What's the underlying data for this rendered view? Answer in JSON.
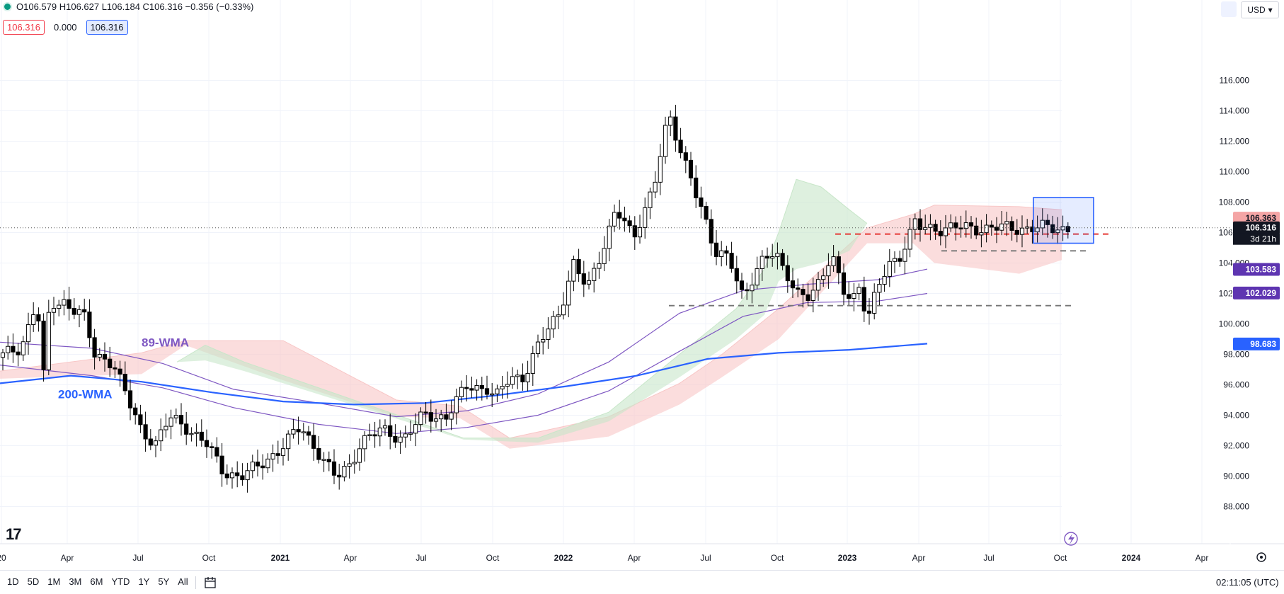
{
  "header": {
    "ohlc_text": "O106.579 H106.627 L106.184 C106.316 −0.356 (−0.33%)",
    "badge_red": "106.316",
    "badge_mid": "0.000",
    "badge_blue": "106.316",
    "currency": "USD"
  },
  "bottom_bar": {
    "ranges": [
      "1D",
      "5D",
      "1M",
      "3M",
      "6M",
      "YTD",
      "1Y",
      "5Y",
      "All"
    ],
    "clock": "02:11:05 (UTC)"
  },
  "colors": {
    "up_candle": "#ffffff",
    "down_candle": "#000000",
    "wma200": "#2962ff",
    "wma89": "#7e57c2",
    "cloud_bull": "#c8e6c9",
    "cloud_bear": "#f8c6c6",
    "resistance": "#e53935",
    "support": "#757575",
    "highlight_box": "#2962ff"
  },
  "chart_data": {
    "type": "candlestick",
    "x_ticks": [
      "20",
      "Apr",
      "Jul",
      "Oct",
      "2021",
      "Apr",
      "Jul",
      "Oct",
      "2022",
      "Apr",
      "Jul",
      "Oct",
      "2023",
      "Apr",
      "Jul",
      "Oct",
      "2024",
      "Apr"
    ],
    "ylim": [
      87,
      117
    ],
    "y_ticks": [
      "88.000",
      "90.000",
      "92.000",
      "94.000",
      "96.000",
      "98.000",
      "100.000",
      "102.000",
      "104.000",
      "106.000",
      "108.000",
      "110.000",
      "112.000",
      "114.000",
      "116.000"
    ],
    "annotations": {
      "wma89_label": "89-WMA",
      "wma200_label": "200-WMA"
    },
    "price_labels": {
      "pink": "106.363",
      "current": "106.316",
      "countdown": "3d 21h",
      "purple_upper": "103.583",
      "purple_lower": "102.029",
      "blue": "98.683"
    },
    "horizontal_levels": [
      {
        "y": 105.9,
        "style": "dashed",
        "color": "red"
      },
      {
        "y": 104.8,
        "style": "dashed",
        "color": "gray"
      },
      {
        "y": 101.2,
        "style": "dashed",
        "color": "gray"
      }
    ],
    "keypoints": [
      [
        0,
        97.8
      ],
      [
        30,
        98.5
      ],
      [
        52,
        101.5
      ],
      [
        62,
        96.3
      ],
      [
        70,
        101.2
      ],
      [
        90,
        101.5
      ],
      [
        118,
        100.5
      ],
      [
        133,
        98.0
      ],
      [
        160,
        97.5
      ],
      [
        180,
        95.0
      ],
      [
        200,
        93.0
      ],
      [
        220,
        92.2
      ],
      [
        240,
        93.8
      ],
      [
        265,
        93.2
      ],
      [
        290,
        92.2
      ],
      [
        315,
        90.3
      ],
      [
        340,
        90.0
      ],
      [
        365,
        90.6
      ],
      [
        395,
        91.8
      ],
      [
        425,
        93.2
      ],
      [
        450,
        91.6
      ],
      [
        475,
        89.8
      ],
      [
        495,
        90.8
      ],
      [
        510,
        92.3
      ],
      [
        540,
        93.0
      ],
      [
        570,
        92.5
      ],
      [
        600,
        94.0
      ],
      [
        630,
        93.9
      ],
      [
        660,
        95.9
      ],
      [
        690,
        95.8
      ],
      [
        700,
        95.1
      ],
      [
        720,
        96.4
      ],
      [
        740,
        96.6
      ],
      [
        760,
        98.5
      ],
      [
        790,
        100.8
      ],
      [
        810,
        104.0
      ],
      [
        830,
        102.2
      ],
      [
        850,
        104.8
      ],
      [
        870,
        107.6
      ],
      [
        895,
        105.5
      ],
      [
        925,
        109.5
      ],
      [
        945,
        113.6
      ],
      [
        960,
        111.5
      ],
      [
        975,
        110.0
      ],
      [
        990,
        107.6
      ],
      [
        1010,
        104.5
      ],
      [
        1030,
        104.7
      ],
      [
        1050,
        101.6
      ],
      [
        1060,
        102.4
      ],
      [
        1080,
        104.5
      ],
      [
        1095,
        105.0
      ],
      [
        1105,
        103.7
      ],
      [
        1125,
        101.8
      ],
      [
        1140,
        101.9
      ],
      [
        1160,
        103.0
      ],
      [
        1175,
        104.4
      ],
      [
        1190,
        102.2
      ],
      [
        1205,
        101.8
      ],
      [
        1215,
        102.6
      ],
      [
        1225,
        100.2
      ],
      [
        1240,
        102.2
      ],
      [
        1255,
        104.0
      ],
      [
        1270,
        104.4
      ],
      [
        1285,
        105.8
      ],
      [
        1295,
        106.8
      ],
      [
        1300,
        106.3
      ],
      [
        1310,
        106.3
      ]
    ],
    "wma200": [
      [
        0,
        96.1
      ],
      [
        100,
        96.6
      ],
      [
        200,
        96.2
      ],
      [
        300,
        95.5
      ],
      [
        400,
        94.9
      ],
      [
        500,
        94.7
      ],
      [
        600,
        94.8
      ],
      [
        700,
        95.3
      ],
      [
        800,
        95.9
      ],
      [
        900,
        96.6
      ],
      [
        1000,
        97.7
      ],
      [
        1100,
        98.1
      ],
      [
        1200,
        98.3
      ],
      [
        1310,
        98.7
      ]
    ],
    "wma89_fast": [
      [
        0,
        98.8
      ],
      [
        130,
        98.4
      ],
      [
        230,
        97.4
      ],
      [
        330,
        95.7
      ],
      [
        450,
        94.8
      ],
      [
        560,
        93.9
      ],
      [
        660,
        94.3
      ],
      [
        760,
        95.4
      ],
      [
        860,
        97.5
      ],
      [
        960,
        100.7
      ],
      [
        1050,
        102.2
      ],
      [
        1140,
        102.6
      ],
      [
        1240,
        102.9
      ],
      [
        1310,
        103.6
      ]
    ],
    "wma89_slow": [
      [
        0,
        97.3
      ],
      [
        130,
        96.6
      ],
      [
        230,
        95.8
      ],
      [
        330,
        94.5
      ],
      [
        450,
        93.4
      ],
      [
        560,
        92.8
      ],
      [
        660,
        93.2
      ],
      [
        760,
        94.0
      ],
      [
        860,
        95.6
      ],
      [
        960,
        98.2
      ],
      [
        1050,
        100.5
      ],
      [
        1140,
        101.4
      ],
      [
        1240,
        101.5
      ],
      [
        1310,
        102.0
      ]
    ],
    "cloud_green": {
      "upper": [
        [
          250,
          97.5
        ],
        [
          290,
          98.6
        ],
        [
          345,
          97.5
        ],
        [
          655,
          92.5
        ],
        [
          760,
          92.5
        ],
        [
          860,
          94.2
        ],
        [
          960,
          98.0
        ],
        [
          1040,
          101.0
        ],
        [
          1080,
          103.6
        ],
        [
          1100,
          106.0
        ],
        [
          1125,
          109.5
        ],
        [
          1160,
          109.0
        ],
        [
          1200,
          107.5
        ],
        [
          1225,
          106.6
        ]
      ],
      "lower": [
        [
          250,
          97.5
        ],
        [
          290,
          97.6
        ],
        [
          345,
          96.9
        ],
        [
          655,
          92.4
        ],
        [
          760,
          92.2
        ],
        [
          860,
          93.6
        ],
        [
          960,
          96.5
        ],
        [
          1040,
          99.0
        ],
        [
          1080,
          100.6
        ],
        [
          1100,
          102.8
        ],
        [
          1125,
          103.6
        ],
        [
          1160,
          104.0
        ],
        [
          1200,
          104.8
        ],
        [
          1225,
          106.6
        ]
      ]
    },
    "cloud_red": {
      "upper": [
        [
          0,
          96.9
        ],
        [
          200,
          98.1
        ],
        [
          262,
          98.9
        ],
        [
          400,
          98.9
        ],
        [
          560,
          95.0
        ],
        [
          650,
          94.6
        ],
        [
          720,
          92.5
        ],
        [
          860,
          93.9
        ],
        [
          960,
          96.1
        ],
        [
          1020,
          98.0
        ],
        [
          1100,
          101.0
        ],
        [
          1225,
          106.3
        ],
        [
          1290,
          107.2
        ],
        [
          1320,
          107.8
        ],
        [
          1440,
          107.7
        ],
        [
          1500,
          107.5
        ]
      ],
      "lower": [
        [
          0,
          96.4
        ],
        [
          200,
          96.7
        ],
        [
          262,
          98.6
        ],
        [
          400,
          96.3
        ],
        [
          560,
          93.9
        ],
        [
          650,
          93.8
        ],
        [
          720,
          91.8
        ],
        [
          860,
          92.6
        ],
        [
          960,
          94.7
        ],
        [
          1020,
          96.5
        ],
        [
          1100,
          99.0
        ],
        [
          1225,
          105.3
        ],
        [
          1290,
          105.3
        ],
        [
          1320,
          104.0
        ],
        [
          1440,
          103.3
        ],
        [
          1500,
          104.2
        ]
      ]
    }
  }
}
